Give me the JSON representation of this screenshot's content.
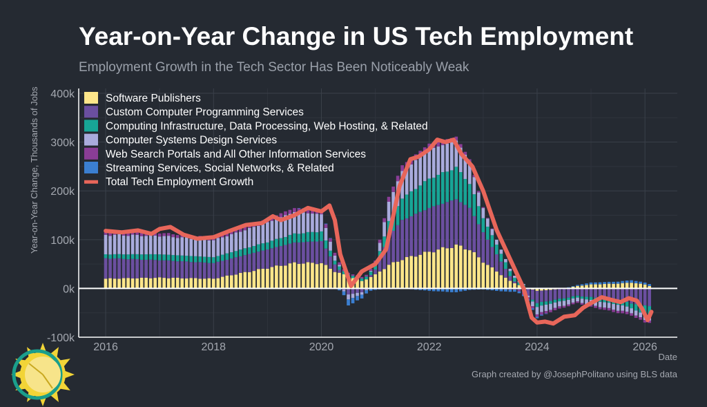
{
  "chart_data": {
    "type": "bar",
    "stacked": true,
    "title": "Year-on-Year Change in US Tech Employment",
    "subtitle": "Employment Growth in the Tech Sector Has Been Noticeably Weak",
    "xlabel": "Date",
    "ylabel": "Year-on-Year Change, Thousands of Jobs",
    "xlim": [
      2015.5,
      2026.6
    ],
    "ylim": [
      -100,
      410
    ],
    "x_ticks": [
      {
        "value": 2016,
        "label": "2016"
      },
      {
        "value": 2018,
        "label": "2018"
      },
      {
        "value": 2020,
        "label": "2020"
      },
      {
        "value": 2022,
        "label": "2022"
      },
      {
        "value": 2024,
        "label": "2024"
      },
      {
        "value": 2026,
        "label": "2026"
      }
    ],
    "y_ticks": [
      {
        "value": -100,
        "label": "-100k"
      },
      {
        "value": 0,
        "label": "0k"
      },
      {
        "value": 100,
        "label": "100k"
      },
      {
        "value": 200,
        "label": "200k"
      },
      {
        "value": 300,
        "label": "300k"
      },
      {
        "value": 400,
        "label": "400k"
      }
    ],
    "grid": true,
    "legend_position": "top-left",
    "x_start": "2016-01",
    "frequency": "monthly",
    "series": [
      {
        "name": "Software Publishers",
        "color": "#fde68a",
        "anchors": [
          [
            2016.0,
            20
          ],
          [
            2017.0,
            22
          ],
          [
            2018.0,
            20
          ],
          [
            2019.0,
            42
          ],
          [
            2019.5,
            52
          ],
          [
            2020.0,
            52
          ],
          [
            2020.25,
            35
          ],
          [
            2020.5,
            25
          ],
          [
            2020.75,
            15
          ],
          [
            2021.0,
            28
          ],
          [
            2021.25,
            48
          ],
          [
            2021.5,
            60
          ],
          [
            2022.0,
            75
          ],
          [
            2022.5,
            88
          ],
          [
            2022.75,
            80
          ],
          [
            2023.0,
            55
          ],
          [
            2023.25,
            35
          ],
          [
            2023.5,
            15
          ],
          [
            2023.75,
            3
          ],
          [
            2024.0,
            -5
          ],
          [
            2024.25,
            -3
          ],
          [
            2024.5,
            0
          ],
          [
            2024.75,
            5
          ],
          [
            2025.0,
            8
          ],
          [
            2025.5,
            10
          ],
          [
            2025.75,
            12
          ],
          [
            2026.0,
            8
          ],
          [
            2026.08,
            5
          ]
        ]
      },
      {
        "name": "Custom Computer Programming Services",
        "color": "#6b4fa0",
        "anchors": [
          [
            2016.0,
            42
          ],
          [
            2017.0,
            36
          ],
          [
            2018.0,
            32
          ],
          [
            2019.0,
            38
          ],
          [
            2019.5,
            42
          ],
          [
            2020.0,
            45
          ],
          [
            2020.25,
            15
          ],
          [
            2020.5,
            -12
          ],
          [
            2020.75,
            -8
          ],
          [
            2021.0,
            10
          ],
          [
            2021.25,
            60
          ],
          [
            2021.5,
            80
          ],
          [
            2022.0,
            90
          ],
          [
            2022.5,
            95
          ],
          [
            2022.75,
            85
          ],
          [
            2023.0,
            60
          ],
          [
            2023.25,
            35
          ],
          [
            2023.5,
            10
          ],
          [
            2023.75,
            -10
          ],
          [
            2024.0,
            -25
          ],
          [
            2024.25,
            -22
          ],
          [
            2024.5,
            -20
          ],
          [
            2024.75,
            -15
          ],
          [
            2025.0,
            -18
          ],
          [
            2025.5,
            -25
          ],
          [
            2025.75,
            -30
          ],
          [
            2026.0,
            -35
          ],
          [
            2026.08,
            -35
          ]
        ]
      },
      {
        "name": "Computing Infrastructure, Data Processing, Web Hosting, & Related",
        "color": "#17a596",
        "anchors": [
          [
            2016.0,
            8
          ],
          [
            2017.0,
            12
          ],
          [
            2018.0,
            12
          ],
          [
            2019.0,
            15
          ],
          [
            2019.5,
            18
          ],
          [
            2020.0,
            20
          ],
          [
            2020.25,
            8
          ],
          [
            2020.5,
            5
          ],
          [
            2020.75,
            5
          ],
          [
            2021.0,
            8
          ],
          [
            2021.25,
            30
          ],
          [
            2021.5,
            45
          ],
          [
            2022.0,
            60
          ],
          [
            2022.5,
            65
          ],
          [
            2022.75,
            50
          ],
          [
            2023.0,
            30
          ],
          [
            2023.25,
            20
          ],
          [
            2023.5,
            10
          ],
          [
            2023.75,
            4
          ],
          [
            2024.0,
            -8
          ],
          [
            2024.25,
            -6
          ],
          [
            2024.5,
            -5
          ],
          [
            2024.75,
            -4
          ],
          [
            2025.0,
            -6
          ],
          [
            2025.5,
            -8
          ],
          [
            2025.75,
            -10
          ],
          [
            2026.0,
            -20
          ],
          [
            2026.08,
            -22
          ]
        ]
      },
      {
        "name": "Computer Systems Design Services",
        "color": "#a9abdc",
        "anchors": [
          [
            2016.0,
            40
          ],
          [
            2017.0,
            38
          ],
          [
            2018.0,
            35
          ],
          [
            2019.0,
            40
          ],
          [
            2019.5,
            45
          ],
          [
            2020.0,
            35
          ],
          [
            2020.25,
            10
          ],
          [
            2020.5,
            -10
          ],
          [
            2020.75,
            -5
          ],
          [
            2021.0,
            5
          ],
          [
            2021.25,
            40
          ],
          [
            2021.5,
            55
          ],
          [
            2022.0,
            60
          ],
          [
            2022.5,
            55
          ],
          [
            2022.75,
            45
          ],
          [
            2023.0,
            20
          ],
          [
            2023.25,
            10
          ],
          [
            2023.5,
            5
          ],
          [
            2023.75,
            2
          ],
          [
            2024.0,
            -15
          ],
          [
            2024.25,
            -12
          ],
          [
            2024.5,
            -10
          ],
          [
            2024.75,
            -8
          ],
          [
            2025.0,
            -10
          ],
          [
            2025.5,
            -12
          ],
          [
            2025.75,
            -10
          ],
          [
            2026.0,
            -10
          ],
          [
            2026.08,
            -8
          ]
        ]
      },
      {
        "name": "Web Search Portals and All Other Information Services",
        "color": "#8a3d96",
        "anchors": [
          [
            2016.0,
            8
          ],
          [
            2017.0,
            6
          ],
          [
            2018.0,
            5
          ],
          [
            2019.0,
            8
          ],
          [
            2019.5,
            8
          ],
          [
            2020.0,
            8
          ],
          [
            2020.25,
            6
          ],
          [
            2020.5,
            3
          ],
          [
            2020.75,
            3
          ],
          [
            2021.0,
            5
          ],
          [
            2021.25,
            10
          ],
          [
            2021.5,
            12
          ],
          [
            2022.0,
            12
          ],
          [
            2022.5,
            8
          ],
          [
            2022.75,
            5
          ],
          [
            2023.0,
            2
          ],
          [
            2023.25,
            0
          ],
          [
            2023.5,
            -2
          ],
          [
            2023.75,
            -3
          ],
          [
            2024.0,
            -5
          ],
          [
            2024.25,
            -5
          ],
          [
            2024.5,
            -4
          ],
          [
            2024.75,
            -3
          ],
          [
            2025.0,
            -4
          ],
          [
            2025.5,
            -5
          ],
          [
            2025.75,
            -5
          ],
          [
            2026.0,
            -5
          ],
          [
            2026.08,
            -5
          ]
        ]
      },
      {
        "name": "Streaming Services, Social Networks, & Related",
        "color": "#3b7fd1",
        "anchors": [
          [
            2016.0,
            0
          ],
          [
            2017.0,
            0
          ],
          [
            2018.0,
            0
          ],
          [
            2019.0,
            0
          ],
          [
            2019.5,
            0
          ],
          [
            2020.0,
            2
          ],
          [
            2020.25,
            0
          ],
          [
            2020.5,
            -12
          ],
          [
            2020.75,
            -8
          ],
          [
            2021.0,
            -3
          ],
          [
            2021.25,
            0
          ],
          [
            2021.5,
            0
          ],
          [
            2022.0,
            -5
          ],
          [
            2022.5,
            -8
          ],
          [
            2022.75,
            -3
          ],
          [
            2023.0,
            -2
          ],
          [
            2023.25,
            -5
          ],
          [
            2023.5,
            -5
          ],
          [
            2023.75,
            -3
          ],
          [
            2024.0,
            -3
          ],
          [
            2024.25,
            0
          ],
          [
            2024.5,
            0
          ],
          [
            2024.75,
            2
          ],
          [
            2025.0,
            4
          ],
          [
            2025.5,
            4
          ],
          [
            2025.75,
            5
          ],
          [
            2026.0,
            4
          ],
          [
            2026.08,
            4
          ]
        ]
      }
    ],
    "total_line": {
      "name": "Total Tech Employment Growth",
      "color": "#e8665a",
      "points": [
        [
          2016.0,
          118
        ],
        [
          2016.3,
          115
        ],
        [
          2016.6,
          119
        ],
        [
          2016.85,
          112
        ],
        [
          2017.0,
          122
        ],
        [
          2017.2,
          126
        ],
        [
          2017.45,
          110
        ],
        [
          2017.7,
          102
        ],
        [
          2018.0,
          105
        ],
        [
          2018.3,
          118
        ],
        [
          2018.6,
          130
        ],
        [
          2018.9,
          134
        ],
        [
          2019.1,
          148
        ],
        [
          2019.25,
          140
        ],
        [
          2019.5,
          150
        ],
        [
          2019.75,
          165
        ],
        [
          2020.0,
          158
        ],
        [
          2020.15,
          170
        ],
        [
          2020.25,
          140
        ],
        [
          2020.35,
          70
        ],
        [
          2020.55,
          5
        ],
        [
          2020.75,
          35
        ],
        [
          2021.0,
          50
        ],
        [
          2021.2,
          80
        ],
        [
          2021.45,
          210
        ],
        [
          2021.65,
          265
        ],
        [
          2021.8,
          270
        ],
        [
          2022.0,
          285
        ],
        [
          2022.15,
          305
        ],
        [
          2022.3,
          300
        ],
        [
          2022.45,
          305
        ],
        [
          2022.6,
          275
        ],
        [
          2022.8,
          250
        ],
        [
          2023.0,
          200
        ],
        [
          2023.25,
          120
        ],
        [
          2023.5,
          60
        ],
        [
          2023.75,
          0
        ],
        [
          2023.9,
          -60
        ],
        [
          2024.0,
          -70
        ],
        [
          2024.15,
          -68
        ],
        [
          2024.3,
          -72
        ],
        [
          2024.5,
          -58
        ],
        [
          2024.7,
          -55
        ],
        [
          2024.85,
          -40
        ],
        [
          2025.0,
          -30
        ],
        [
          2025.2,
          -18
        ],
        [
          2025.4,
          -24
        ],
        [
          2025.55,
          -28
        ],
        [
          2025.7,
          -20
        ],
        [
          2025.85,
          -25
        ],
        [
          2025.95,
          -42
        ],
        [
          2026.05,
          -65
        ],
        [
          2026.12,
          -48
        ]
      ]
    }
  },
  "legend": [
    {
      "label": "Software Publishers",
      "color": "#fde68a",
      "kind": "box"
    },
    {
      "label": "Custom Computer Programming Services",
      "color": "#6b4fa0",
      "kind": "box"
    },
    {
      "label": "Computing Infrastructure, Data Processing, Web Hosting, & Related",
      "color": "#17a596",
      "kind": "box"
    },
    {
      "label": "Computer Systems Design Services",
      "color": "#a9abdc",
      "kind": "box"
    },
    {
      "label": "Web Search Portals and All Other Information Services",
      "color": "#8a3d96",
      "kind": "box"
    },
    {
      "label": "Streaming Services, Social Networks, & Related",
      "color": "#3b7fd1",
      "kind": "box"
    },
    {
      "label": "Total Tech Employment Growth",
      "color": "#e8665a",
      "kind": "line"
    }
  ],
  "credit": "Graph created by @JosephPolitano using BLS data",
  "logo_icon": "sun-logo-icon",
  "colors": {
    "background": "#252a32",
    "grid": "#3a404a",
    "zero_line": "#ffffff",
    "axis": "#ffffff"
  }
}
